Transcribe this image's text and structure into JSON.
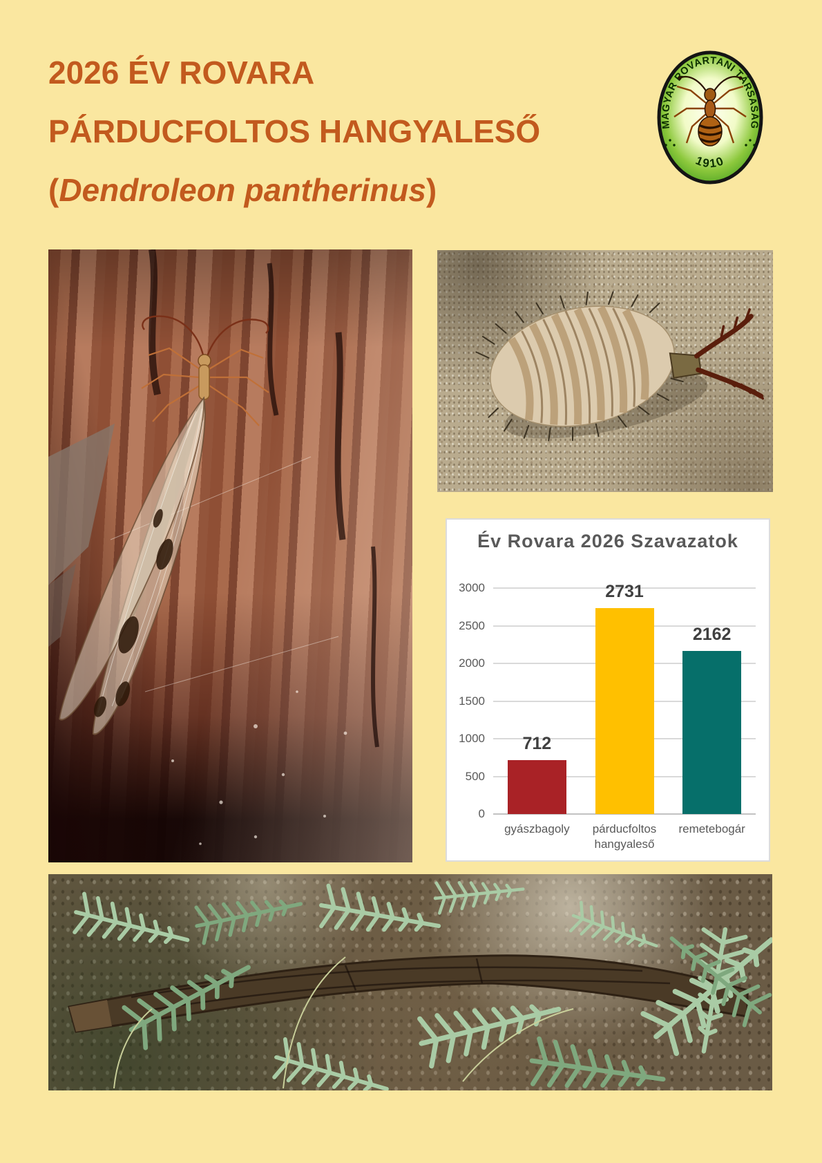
{
  "colors": {
    "page_bg": "#FAE7A0",
    "title_text": "#C25A1E",
    "chart_text": "#595959",
    "value_label_text": "#404040",
    "bar_red": "#A92226",
    "bar_gold": "#FFC000",
    "bar_teal": "#066F6A"
  },
  "header": {
    "line1": "2026 ÉV ROVARA",
    "line2": "PÁRDUCFOLTOS HANGYALESŐ",
    "species_open": "(",
    "species_name": "Dendroleon pantherinus",
    "species_close": ")"
  },
  "logo": {
    "ring_text": "MAGYAR ROVARTANI TÁRSASÁG",
    "year": "1910"
  },
  "chart_data": {
    "type": "bar",
    "title": "Év Rovara 2026 Szavazatok",
    "categories": [
      "gyászbagoly",
      "párducfoltos hangyaleső",
      "remetebogár"
    ],
    "values": [
      712,
      2731,
      2162
    ],
    "bar_colors": [
      "#A92226",
      "#FFC000",
      "#066F6A"
    ],
    "y_ticks": [
      0,
      500,
      1000,
      1500,
      2000,
      2500,
      3000
    ],
    "ylim": [
      0,
      3000
    ],
    "xlabel": "",
    "ylabel": "",
    "grid": true,
    "legend": false,
    "value_labels": true,
    "plot_bg": "#FFFFFF"
  }
}
